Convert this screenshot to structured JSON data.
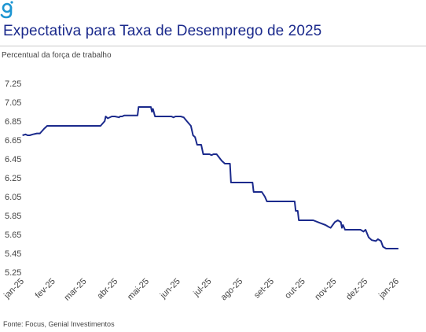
{
  "brand": {
    "logo_icon": "genial-logo-icon",
    "color": "#1e96d2"
  },
  "header": {
    "title": "Expectativa para Taxa de Desemprego de 2025",
    "subtitle": "Percentual da força de trabalho"
  },
  "footer": {
    "source": "Fonte: Focus, Genial Investimentos"
  },
  "chart_data": {
    "type": "line",
    "title": "Expectativa para Taxa de Desemprego de 2025",
    "subtitle": "Percentual da força de trabalho",
    "xlabel": "",
    "ylabel": "",
    "x_ticks": [
      "jan-25",
      "fev-25",
      "mar-25",
      "abr-25",
      "mai-25",
      "jun-25",
      "jul-25",
      "ago-25",
      "set-25",
      "out-25",
      "nov-25",
      "dez-25",
      "jan-26"
    ],
    "y_ticks": [
      "7.25",
      "7.05",
      "6.85",
      "6.65",
      "6.45",
      "6.25",
      "6.05",
      "5.85",
      "5.65",
      "5.45",
      "5.25"
    ],
    "ylim": [
      5.25,
      7.25
    ],
    "grid": false,
    "legend": "none",
    "color": "#1b2a8c",
    "series": [
      {
        "points": [
          [
            "2025-01-03",
            6.7
          ],
          [
            "2025-01-06",
            6.71
          ],
          [
            "2025-01-08",
            6.7
          ],
          [
            "2025-01-10",
            6.7
          ],
          [
            "2025-01-13",
            6.71
          ],
          [
            "2025-01-17",
            6.72
          ],
          [
            "2025-01-20",
            6.72
          ],
          [
            "2025-01-24",
            6.77
          ],
          [
            "2025-01-27",
            6.8
          ],
          [
            "2025-03-20",
            6.8
          ],
          [
            "2025-03-24",
            6.85
          ],
          [
            "2025-03-25",
            6.9
          ],
          [
            "2025-03-27",
            6.88
          ],
          [
            "2025-03-31",
            6.9
          ],
          [
            "2025-04-03",
            6.9
          ],
          [
            "2025-04-07",
            6.89
          ],
          [
            "2025-04-08",
            6.9
          ],
          [
            "2025-04-10",
            6.9
          ],
          [
            "2025-04-12",
            6.91
          ],
          [
            "2025-04-25",
            6.91
          ],
          [
            "2025-04-26",
            7.0
          ],
          [
            "2025-05-08",
            7.0
          ],
          [
            "2025-05-09",
            6.95
          ],
          [
            "2025-05-10",
            6.98
          ],
          [
            "2025-05-12",
            6.9
          ],
          [
            "2025-05-28",
            6.9
          ],
          [
            "2025-05-30",
            6.89
          ],
          [
            "2025-06-01",
            6.9
          ],
          [
            "2025-06-06",
            6.9
          ],
          [
            "2025-06-09",
            6.89
          ],
          [
            "2025-06-12",
            6.85
          ],
          [
            "2025-06-16",
            6.8
          ],
          [
            "2025-06-18",
            6.7
          ],
          [
            "2025-06-20",
            6.68
          ],
          [
            "2025-06-22",
            6.6
          ],
          [
            "2025-06-26",
            6.6
          ],
          [
            "2025-06-28",
            6.5
          ],
          [
            "2025-07-04",
            6.5
          ],
          [
            "2025-07-06",
            6.49
          ],
          [
            "2025-07-08",
            6.5
          ],
          [
            "2025-07-11",
            6.5
          ],
          [
            "2025-07-16",
            6.43
          ],
          [
            "2025-07-19",
            6.4
          ],
          [
            "2025-07-24",
            6.4
          ],
          [
            "2025-07-25",
            6.2
          ],
          [
            "2025-08-15",
            6.2
          ],
          [
            "2025-08-16",
            6.1
          ],
          [
            "2025-08-24",
            6.1
          ],
          [
            "2025-08-27",
            6.05
          ],
          [
            "2025-08-29",
            6.0
          ],
          [
            "2025-09-25",
            6.0
          ],
          [
            "2025-09-26",
            5.9
          ],
          [
            "2025-09-28",
            5.9
          ],
          [
            "2025-09-29",
            5.8
          ],
          [
            "2025-10-13",
            5.8
          ],
          [
            "2025-10-20",
            5.77
          ],
          [
            "2025-10-25",
            5.75
          ],
          [
            "2025-10-28",
            5.73
          ],
          [
            "2025-10-30",
            5.72
          ],
          [
            "2025-11-01",
            5.75
          ],
          [
            "2025-11-03",
            5.78
          ],
          [
            "2025-11-06",
            5.8
          ],
          [
            "2025-11-09",
            5.78
          ],
          [
            "2025-11-10",
            5.72
          ],
          [
            "2025-11-11",
            5.75
          ],
          [
            "2025-11-13",
            5.7
          ],
          [
            "2025-11-28",
            5.7
          ],
          [
            "2025-12-01",
            5.68
          ],
          [
            "2025-12-03",
            5.7
          ],
          [
            "2025-12-06",
            5.62
          ],
          [
            "2025-12-09",
            5.59
          ],
          [
            "2025-12-13",
            5.58
          ],
          [
            "2025-12-15",
            5.6
          ],
          [
            "2025-12-18",
            5.58
          ],
          [
            "2025-12-20",
            5.52
          ],
          [
            "2025-12-23",
            5.5
          ],
          [
            "2026-01-04",
            5.5
          ]
        ]
      }
    ]
  }
}
